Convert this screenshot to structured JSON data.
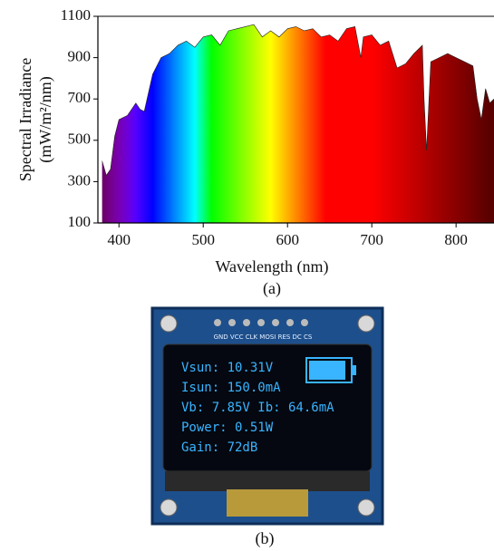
{
  "chart_data": {
    "type": "area",
    "ylabel": [
      "Spectral Irradiance",
      "(mW/m²/nm)"
    ],
    "xlabel": "Wavelength (nm)",
    "caption": "(a)",
    "x": [
      380,
      385,
      390,
      395,
      400,
      410,
      420,
      425,
      430,
      440,
      450,
      460,
      470,
      480,
      490,
      500,
      510,
      520,
      530,
      540,
      550,
      560,
      570,
      580,
      590,
      600,
      610,
      620,
      630,
      640,
      650,
      660,
      670,
      680,
      687,
      690,
      700,
      710,
      720,
      730,
      740,
      750,
      760,
      762,
      765,
      770,
      780,
      790,
      800,
      810,
      820,
      825,
      830,
      835,
      840,
      845
    ],
    "values": [
      400,
      330,
      360,
      520,
      600,
      620,
      680,
      650,
      640,
      820,
      900,
      920,
      960,
      980,
      950,
      1000,
      1010,
      960,
      1030,
      1040,
      1050,
      1060,
      1000,
      1030,
      1000,
      1040,
      1050,
      1030,
      1040,
      1000,
      1010,
      980,
      1040,
      1050,
      900,
      1000,
      1010,
      960,
      980,
      850,
      870,
      920,
      960,
      700,
      450,
      880,
      900,
      920,
      900,
      880,
      860,
      700,
      600,
      750,
      680,
      700
    ],
    "xlim": [
      375,
      845
    ],
    "xticks": [
      400,
      500,
      600,
      700,
      800
    ],
    "ylim": [
      100,
      1100
    ],
    "yticks": [
      100,
      300,
      500,
      700,
      900,
      1100
    ],
    "fill": "spectrum"
  },
  "panel_b": {
    "pins": "GND VCC CLK MOSI RES DC CS",
    "lines": [
      "Vsun: 10.31V",
      "Isun: 150.0mA",
      "Vb: 7.85V  Ib: 64.6mA",
      "Power: 0.51W",
      "Gain: 72dB"
    ],
    "caption": "(b)"
  }
}
